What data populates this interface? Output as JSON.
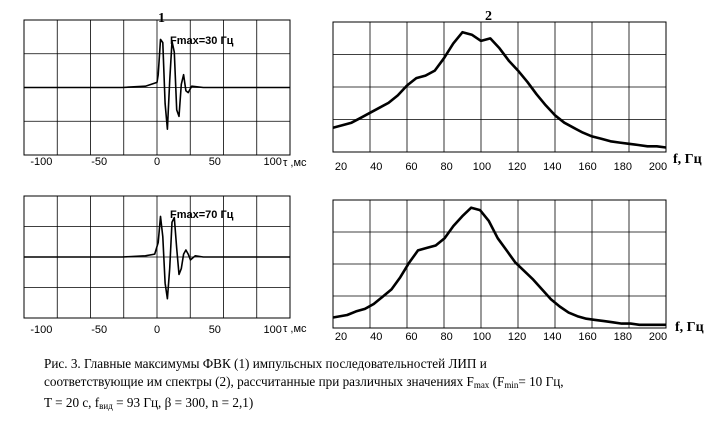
{
  "panel_labels": [
    "1",
    "2"
  ],
  "chart_data": [
    {
      "type": "line",
      "annotation": "Fmax=30 Гц",
      "xlabel": "τ ,мс",
      "xlim": [
        -115,
        115
      ],
      "xticks": [
        "-100",
        "-50",
        "0",
        "50",
        "100"
      ],
      "grid": true,
      "series": [
        {
          "x": [
            -115,
            -30,
            -10,
            0,
            1,
            3,
            5,
            7,
            9,
            11,
            13,
            15,
            17,
            19,
            21,
            23,
            25,
            27,
            30,
            40,
            60,
            115
          ],
          "y": [
            0,
            0,
            0.02,
            0.08,
            0.2,
            0.75,
            0.7,
            -0.25,
            -0.65,
            0.1,
            0.72,
            0.55,
            -0.35,
            -0.45,
            0.05,
            0.2,
            -0.05,
            -0.08,
            0.02,
            0,
            0,
            0
          ]
        }
      ]
    },
    {
      "type": "line",
      "xlabel": "f, Гц",
      "xlim": [
        20,
        200
      ],
      "xticks": [
        "20",
        "40",
        "60",
        "80",
        "100",
        "120",
        "140",
        "160",
        "180",
        "200"
      ],
      "grid": true,
      "series": [
        {
          "x": [
            20,
            25,
            30,
            35,
            40,
            45,
            50,
            55,
            60,
            65,
            70,
            75,
            80,
            85,
            90,
            95,
            100,
            105,
            110,
            115,
            120,
            125,
            130,
            135,
            140,
            145,
            150,
            155,
            160,
            165,
            170,
            175,
            180,
            185,
            190,
            195,
            200
          ],
          "y": [
            0.18,
            0.2,
            0.22,
            0.26,
            0.3,
            0.34,
            0.38,
            0.44,
            0.52,
            0.58,
            0.6,
            0.64,
            0.74,
            0.86,
            0.95,
            0.93,
            0.88,
            0.9,
            0.82,
            0.72,
            0.64,
            0.55,
            0.45,
            0.36,
            0.28,
            0.22,
            0.18,
            0.14,
            0.11,
            0.09,
            0.07,
            0.06,
            0.05,
            0.04,
            0.03,
            0.03,
            0.02
          ]
        }
      ]
    },
    {
      "type": "line",
      "annotation": "Fmax=70 Гц",
      "xlabel": "τ ,мс",
      "xlim": [
        -115,
        115
      ],
      "xticks": [
        "-100",
        "-50",
        "0",
        "50",
        "100"
      ],
      "grid": true,
      "series": [
        {
          "x": [
            -115,
            -30,
            -10,
            -2,
            1,
            3,
            5,
            7,
            9,
            11,
            13,
            15,
            17,
            19,
            21,
            23,
            25,
            27,
            29,
            33,
            40,
            60,
            115
          ],
          "y": [
            0,
            0,
            0.02,
            0.05,
            0.25,
            0.7,
            0.35,
            -0.45,
            -0.72,
            -0.2,
            0.6,
            0.68,
            0.15,
            -0.3,
            -0.2,
            0.05,
            0.12,
            0.05,
            -0.05,
            0.02,
            0,
            0,
            0
          ]
        }
      ]
    },
    {
      "type": "line",
      "xlabel": "f, Гц",
      "xlim": [
        17,
        205
      ],
      "xticks": [
        "20",
        "40",
        "60",
        "80",
        "100",
        "120",
        "140",
        "160",
        "180",
        "200"
      ],
      "grid": true,
      "series": [
        {
          "x": [
            17,
            25,
            30,
            35,
            40,
            45,
            50,
            55,
            60,
            65,
            70,
            75,
            80,
            85,
            90,
            95,
            100,
            105,
            110,
            115,
            120,
            125,
            130,
            135,
            140,
            145,
            150,
            155,
            160,
            165,
            170,
            175,
            180,
            185,
            190,
            195,
            200,
            205
          ],
          "y": [
            0.07,
            0.09,
            0.12,
            0.14,
            0.18,
            0.24,
            0.3,
            0.4,
            0.52,
            0.62,
            0.64,
            0.66,
            0.72,
            0.82,
            0.9,
            0.97,
            0.95,
            0.86,
            0.72,
            0.62,
            0.52,
            0.45,
            0.38,
            0.3,
            0.22,
            0.16,
            0.11,
            0.08,
            0.06,
            0.05,
            0.04,
            0.03,
            0.02,
            0.02,
            0.01,
            0.01,
            0.01,
            0.01
          ]
        }
      ]
    }
  ],
  "caption": {
    "line1": "Рис. 3. Главные максимумы ФВК (1) импульсных последовательностей ЛИП и",
    "line2_pre": "соответствующие им спектры (2), рассчитанные при различных значениях F",
    "line2_sub1": "max",
    "line2_mid": " (F",
    "line2_sub2": "min",
    "line2_post": "= 10 Гц,",
    "line3_pre": "T = 20 с,  f",
    "line3_sub": "вид",
    "line3_post": " = 93 Гц, β = 300, n = 2,1)"
  }
}
